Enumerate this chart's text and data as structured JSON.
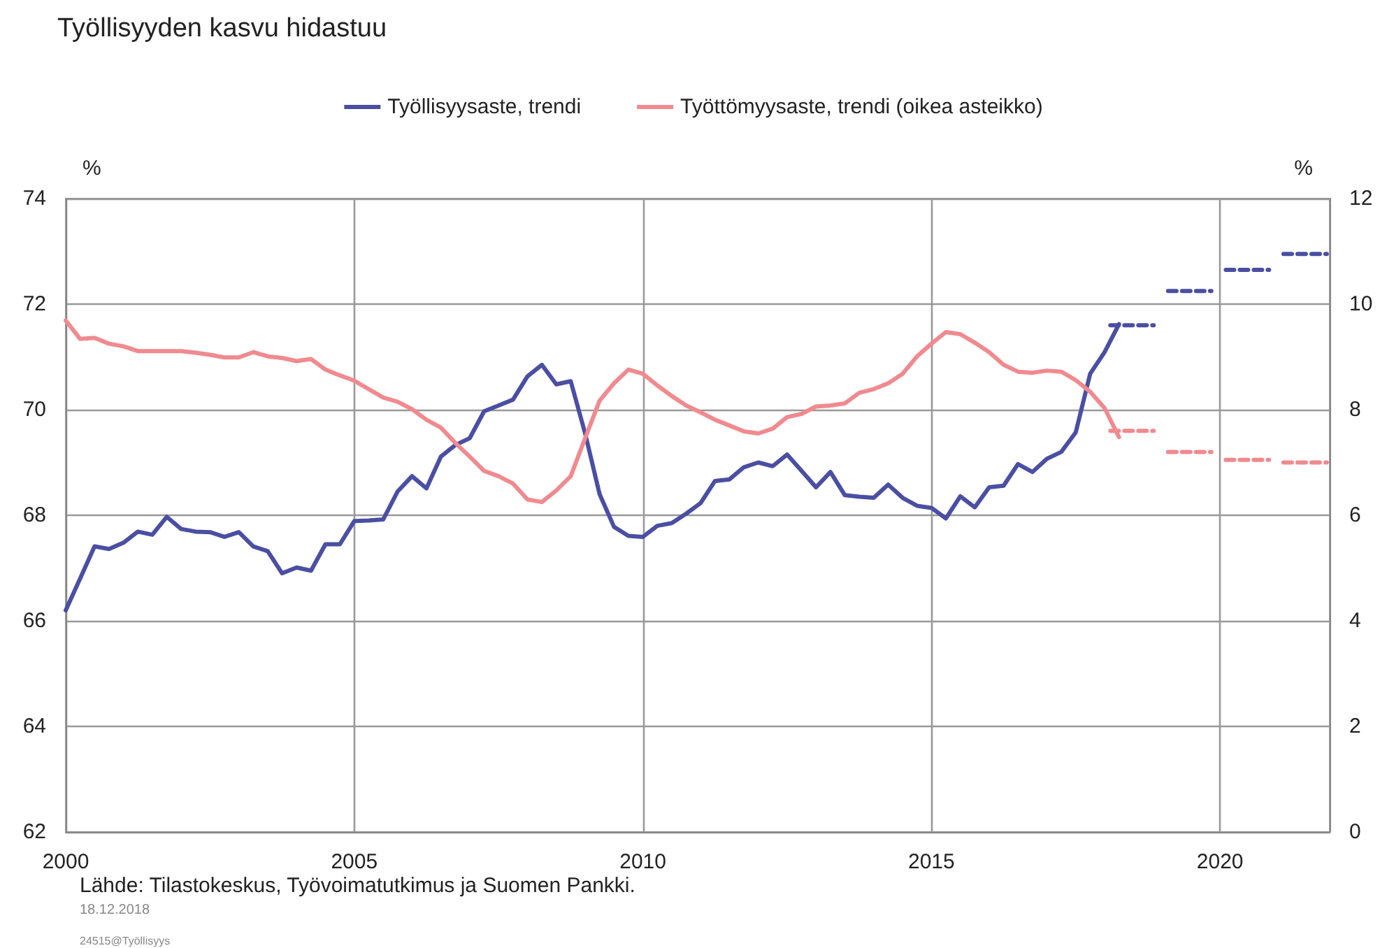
{
  "chart_data": {
    "type": "line",
    "title": "Työllisyyden kasvu hidastuu",
    "ylabel": "%",
    "y2label": "%",
    "annotations": [
      "Lähde: Tilastokeskus, Työvoimatutkimus ja Suomen Pankki.",
      "18.12.2018",
      "24515@Työllisyys"
    ],
    "x": [
      2000,
      2000.25,
      2000.5,
      2000.75,
      2001,
      2001.25,
      2001.5,
      2001.75,
      2002,
      2002.25,
      2002.5,
      2002.75,
      2003,
      2003.25,
      2003.5,
      2003.75,
      2004,
      2004.25,
      2004.5,
      2004.75,
      2005,
      2005.25,
      2005.5,
      2005.75,
      2006,
      2006.25,
      2006.5,
      2006.75,
      2007,
      2007.25,
      2007.5,
      2007.75,
      2008,
      2008.25,
      2008.5,
      2008.75,
      2009,
      2009.25,
      2009.5,
      2009.75,
      2010,
      2010.25,
      2010.5,
      2010.75,
      2011,
      2011.25,
      2011.5,
      2011.75,
      2012,
      2012.25,
      2012.5,
      2012.75,
      2013,
      2013.25,
      2013.5,
      2013.75,
      2014,
      2014.25,
      2014.5,
      2014.75,
      2015,
      2015.25,
      2015.5,
      2015.75,
      2016,
      2016.25,
      2016.5,
      2016.75,
      2017,
      2017.25,
      2017.5,
      2017.75,
      2018,
      2018.25
    ],
    "series": [
      {
        "name": "Työllisyysaste, trendi",
        "color": "#4a4fa3",
        "line_style": "solid",
        "values": [
          66.2,
          66.8,
          67.41,
          67.36,
          67.48,
          67.69,
          67.63,
          67.97,
          67.74,
          67.69,
          67.68,
          67.59,
          67.68,
          67.41,
          67.32,
          66.9,
          67.01,
          66.95,
          67.45,
          67.45,
          67.89,
          67.9,
          67.92,
          68.45,
          68.74,
          68.51,
          69.11,
          69.33,
          69.46,
          69.97,
          70.08,
          70.19,
          70.63,
          70.85,
          70.48,
          70.54,
          69.55,
          68.4,
          67.78,
          67.61,
          67.59,
          67.8,
          67.85,
          68.03,
          68.23,
          68.65,
          68.68,
          68.91,
          69.0,
          68.93,
          69.15,
          68.84,
          68.53,
          68.82,
          68.38,
          68.35,
          68.33,
          68.58,
          68.33,
          68.18,
          68.14,
          67.94,
          68.36,
          68.15,
          68.53,
          68.56,
          68.97,
          68.82,
          69.07,
          69.2,
          69.57,
          70.68,
          71.09,
          71.62
        ]
      },
      {
        "name": "Työttömyysaste, trendi (oikea asteikko)",
        "color": "#f08a8f",
        "axis": "y2",
        "line_style": "solid",
        "values": [
          9.69,
          9.34,
          9.36,
          9.25,
          9.2,
          9.11,
          9.11,
          9.11,
          9.11,
          9.08,
          9.04,
          8.99,
          8.99,
          9.09,
          9.01,
          8.98,
          8.92,
          8.96,
          8.76,
          8.65,
          8.55,
          8.39,
          8.23,
          8.15,
          8.01,
          7.81,
          7.66,
          7.37,
          7.11,
          6.84,
          6.74,
          6.6,
          6.3,
          6.25,
          6.47,
          6.74,
          7.46,
          8.17,
          8.5,
          8.76,
          8.68,
          8.46,
          8.26,
          8.08,
          7.95,
          7.81,
          7.7,
          7.59,
          7.55,
          7.64,
          7.86,
          7.92,
          8.06,
          8.08,
          8.12,
          8.32,
          8.39,
          8.5,
          8.68,
          9.01,
          9.25,
          9.47,
          9.43,
          9.27,
          9.09,
          8.85,
          8.72,
          8.7,
          8.74,
          8.72,
          8.56,
          8.34,
          8.03,
          7.48
        ]
      },
      {
        "color": "#4a4fa3",
        "line_style": "dashed",
        "x": [
          2018.1,
          2018.85,
          2019,
          2019.1,
          2019.85,
          2020,
          2020.1,
          2020.85,
          2021,
          2021.1,
          2021.85
        ],
        "values": [
          71.6,
          71.6,
          null,
          72.25,
          72.25,
          null,
          72.65,
          72.65,
          null,
          72.95,
          72.95
        ]
      },
      {
        "color": "#f08a8f",
        "axis": "y2",
        "line_style": "dashed",
        "x": [
          2018.1,
          2018.85,
          2019,
          2019.1,
          2019.85,
          2020,
          2020.1,
          2020.85,
          2021,
          2021.1,
          2021.85
        ],
        "values": [
          7.6,
          7.6,
          null,
          7.2,
          7.2,
          null,
          7.05,
          7.05,
          null,
          7.0,
          7.0
        ]
      }
    ],
    "xlim": [
      2000,
      2021.9
    ],
    "xticks": [
      2000,
      2005,
      2010,
      2015,
      2020
    ],
    "ylim": [
      62,
      74
    ],
    "yticks": [
      62,
      64,
      66,
      68,
      70,
      72,
      74
    ],
    "y2lim": [
      0,
      12
    ],
    "y2ticks": [
      0,
      2,
      4,
      6,
      8,
      10,
      12
    ],
    "grid": true,
    "legend": "top",
    "marker": "none"
  }
}
